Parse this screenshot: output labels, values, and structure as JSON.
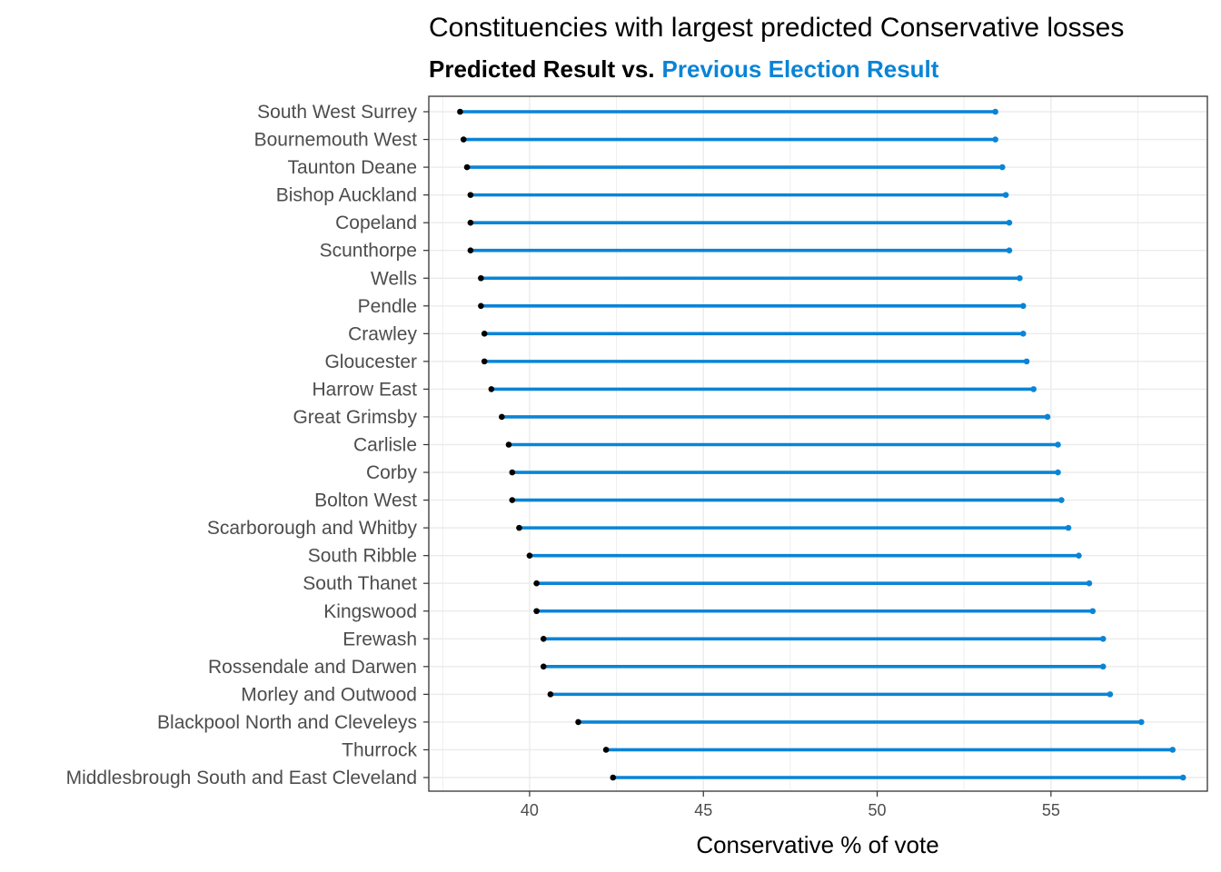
{
  "chart_data": {
    "type": "dumbbell",
    "title": "Constituencies with largest predicted Conservative losses",
    "subtitle": {
      "part1": "Predicted Result vs.",
      "part2": "Previous Election Result"
    },
    "xlabel": "Conservative % of vote",
    "ylabel": "",
    "xlim": [
      37.1,
      59.5
    ],
    "x_ticks": [
      40,
      45,
      50,
      55
    ],
    "grid": true,
    "colors": {
      "predicted": "#000000",
      "previous": "#0a84d6",
      "grid": "#ebebeb",
      "tick_text": "#4d4d4d"
    },
    "series": [
      {
        "name": "Predicted Result",
        "key": "predicted"
      },
      {
        "name": "Previous Election Result",
        "key": "previous"
      }
    ],
    "constituencies": [
      {
        "name": "South West Surrey",
        "predicted": 38.0,
        "previous": 53.4
      },
      {
        "name": "Bournemouth West",
        "predicted": 38.1,
        "previous": 53.4
      },
      {
        "name": "Taunton Deane",
        "predicted": 38.2,
        "previous": 53.6
      },
      {
        "name": "Bishop Auckland",
        "predicted": 38.3,
        "previous": 53.7
      },
      {
        "name": "Copeland",
        "predicted": 38.3,
        "previous": 53.8
      },
      {
        "name": "Scunthorpe",
        "predicted": 38.3,
        "previous": 53.8
      },
      {
        "name": "Wells",
        "predicted": 38.6,
        "previous": 54.1
      },
      {
        "name": "Pendle",
        "predicted": 38.6,
        "previous": 54.2
      },
      {
        "name": "Crawley",
        "predicted": 38.7,
        "previous": 54.2
      },
      {
        "name": "Gloucester",
        "predicted": 38.7,
        "previous": 54.3
      },
      {
        "name": "Harrow East",
        "predicted": 38.9,
        "previous": 54.5
      },
      {
        "name": "Great Grimsby",
        "predicted": 39.2,
        "previous": 54.9
      },
      {
        "name": "Carlisle",
        "predicted": 39.4,
        "previous": 55.2
      },
      {
        "name": "Corby",
        "predicted": 39.5,
        "previous": 55.2
      },
      {
        "name": "Bolton West",
        "predicted": 39.5,
        "previous": 55.3
      },
      {
        "name": "Scarborough and Whitby",
        "predicted": 39.7,
        "previous": 55.5
      },
      {
        "name": "South Ribble",
        "predicted": 40.0,
        "previous": 55.8
      },
      {
        "name": "South Thanet",
        "predicted": 40.2,
        "previous": 56.1
      },
      {
        "name": "Kingswood",
        "predicted": 40.2,
        "previous": 56.2
      },
      {
        "name": "Erewash",
        "predicted": 40.4,
        "previous": 56.5
      },
      {
        "name": "Rossendale and Darwen",
        "predicted": 40.4,
        "previous": 56.5
      },
      {
        "name": "Morley and Outwood",
        "predicted": 40.6,
        "previous": 56.7
      },
      {
        "name": "Blackpool North and Cleveleys",
        "predicted": 41.4,
        "previous": 57.6
      },
      {
        "name": "Thurrock",
        "predicted": 42.2,
        "previous": 58.5
      },
      {
        "name": "Middlesbrough South and East Cleveland",
        "predicted": 42.4,
        "previous": 58.8
      }
    ]
  }
}
